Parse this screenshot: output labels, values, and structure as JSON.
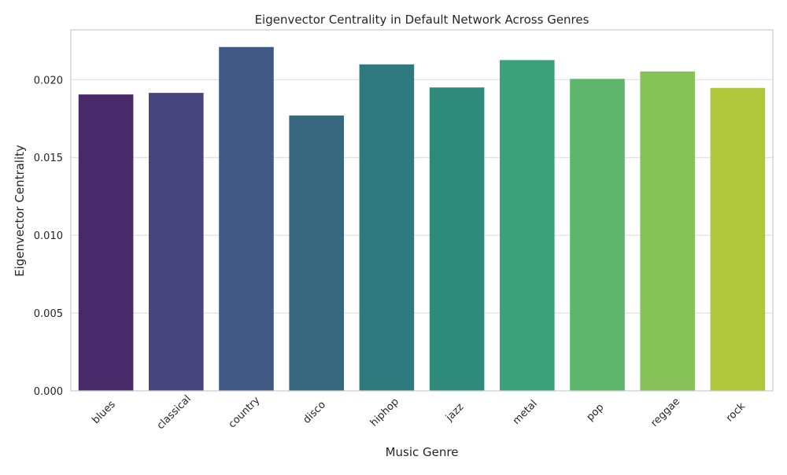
{
  "chart_data": {
    "type": "bar",
    "title": "Eigenvector Centrality in Default Network Across Genres",
    "xlabel": "Music Genre",
    "ylabel": "Eigenvector Centrality",
    "categories": [
      "blues",
      "classical",
      "country",
      "disco",
      "hiphop",
      "jazz",
      "metal",
      "pop",
      "reggae",
      "rock"
    ],
    "values": [
      0.01905,
      0.01915,
      0.0221,
      0.0177,
      0.02098,
      0.0195,
      0.02126,
      0.02005,
      0.02053,
      0.01947
    ],
    "ylim": [
      0,
      0.0232
    ],
    "yticks": [
      "0.000",
      "0.005",
      "0.010",
      "0.015",
      "0.020"
    ],
    "ytick_values": [
      0,
      0.005,
      0.01,
      0.015,
      0.02
    ],
    "grid": "horizontal",
    "colors": [
      "#482a6b",
      "#46447d",
      "#415a85",
      "#37687f",
      "#2f7a7e",
      "#2e8b7c",
      "#3ba17a",
      "#5db56b",
      "#87c258",
      "#b1c73b"
    ]
  }
}
